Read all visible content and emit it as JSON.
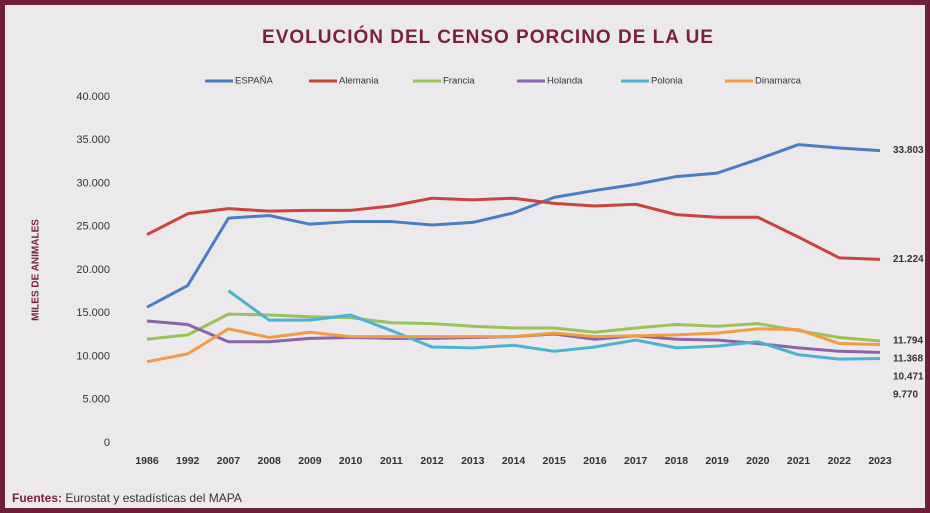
{
  "chart_data": {
    "type": "line",
    "title": "EVOLUCIÓN DEL CENSO PORCINO DE LA UE",
    "y_label": "MILES DE ANIMALES",
    "categories": [
      "1986",
      "1992",
      "2007",
      "2008",
      "2009",
      "2010",
      "2011",
      "2012",
      "2013",
      "2014",
      "2015",
      "2016",
      "2017",
      "2018",
      "2019",
      "2020",
      "2021",
      "2022",
      "2023"
    ],
    "ylim": [
      0,
      40000
    ],
    "yticks": [
      0,
      {
        "value": 5000,
        "label": "5.000"
      },
      {
        "value": 10000,
        "label": "10.000"
      },
      {
        "value": 15000,
        "label": "15.000"
      },
      {
        "value": 20000,
        "label": "20.000"
      },
      {
        "value": 25000,
        "label": "25.000"
      },
      {
        "value": 30000,
        "label": "30.000"
      },
      {
        "value": 35000,
        "label": "35.000"
      },
      {
        "value": 40000,
        "label": "40.000"
      }
    ],
    "legend": "top",
    "series": [
      {
        "name": "ESPAÑA",
        "color": "#4a7ec4",
        "values": [
          15700,
          18200,
          26000,
          26300,
          25300,
          25600,
          25600,
          25200,
          25500,
          26600,
          28400,
          29200,
          29900,
          30800,
          31200,
          32800,
          34500,
          34100,
          33803
        ],
        "value_labels": [
          null,
          null,
          null,
          null,
          null,
          null,
          null,
          null,
          null,
          null,
          null,
          null,
          null,
          null,
          null,
          null,
          null,
          null,
          "33.803"
        ]
      },
      {
        "name": "Alemania",
        "color": "#c9443c",
        "values": [
          24100,
          26500,
          27100,
          26800,
          26900,
          26900,
          27400,
          28300,
          28100,
          28300,
          27700,
          27400,
          27600,
          26400,
          26100,
          26100,
          23800,
          21400,
          21224
        ],
        "value_labels": [
          null,
          null,
          null,
          null,
          null,
          null,
          null,
          null,
          null,
          null,
          null,
          null,
          null,
          null,
          null,
          null,
          null,
          null,
          "21.224"
        ]
      },
      {
        "name": "Francia",
        "color": "#9bc25a",
        "values": [
          12000,
          12500,
          14900,
          14800,
          14600,
          14500,
          13900,
          13800,
          13500,
          13300,
          13300,
          12800,
          13300,
          13700,
          13500,
          13800,
          13000,
          12200,
          11794
        ],
        "value_labels": [
          null,
          null,
          null,
          null,
          null,
          null,
          null,
          null,
          null,
          null,
          null,
          null,
          null,
          null,
          null,
          null,
          null,
          null,
          "11.794"
        ]
      },
      {
        "name": "Holanda",
        "color": "#8a64aa",
        "values": [
          14100,
          13700,
          11700,
          11700,
          12100,
          12200,
          12100,
          12100,
          12200,
          12300,
          12600,
          12000,
          12400,
          12000,
          11900,
          11500,
          11000,
          10600,
          10471
        ],
        "value_labels": [
          null,
          null,
          null,
          null,
          null,
          null,
          null,
          null,
          null,
          null,
          null,
          null,
          null,
          null,
          null,
          null,
          null,
          null,
          "10.471"
        ]
      },
      {
        "name": "Polonia",
        "color": "#4bb3cf",
        "values": [
          null,
          null,
          17600,
          14200,
          14200,
          14800,
          13000,
          11100,
          11000,
          11300,
          10600,
          11100,
          11900,
          11000,
          11200,
          11700,
          10200,
          9700,
          9770
        ],
        "value_labels": [
          null,
          null,
          null,
          null,
          null,
          null,
          null,
          null,
          null,
          null,
          null,
          null,
          null,
          null,
          null,
          null,
          null,
          null,
          "9.770"
        ]
      },
      {
        "name": "Dinamarca",
        "color": "#f39b43",
        "values": [
          9400,
          10300,
          13200,
          12200,
          12800,
          12300,
          12300,
          12300,
          12300,
          12300,
          12700,
          12300,
          12400,
          12500,
          12700,
          13200,
          13100,
          11500,
          11368
        ],
        "value_labels": [
          null,
          null,
          null,
          null,
          null,
          null,
          null,
          null,
          null,
          null,
          null,
          null,
          null,
          null,
          null,
          null,
          null,
          null,
          "11.368"
        ]
      }
    ]
  },
  "footer": {
    "label": "Fuentes:",
    "text": "Eurostat y estadísticas del MAPA"
  }
}
